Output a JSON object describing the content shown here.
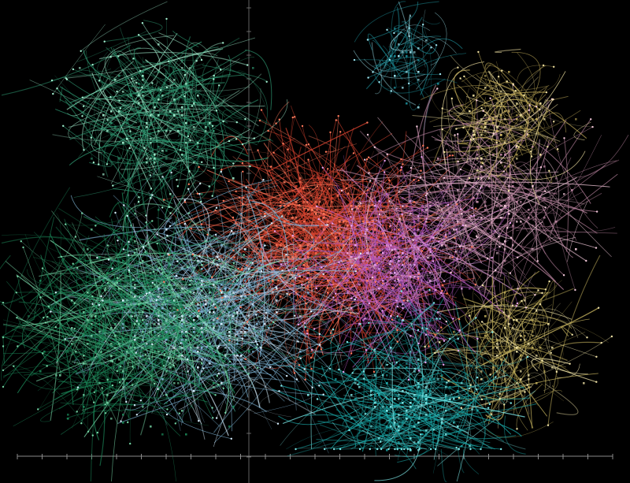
{
  "image": {
    "subject": "network-edge-bundling-visualization",
    "background_color": "#000000",
    "axis_color": "#8a8a8a",
    "tick_count": 24
  },
  "clusters": [
    {
      "id": "red-core",
      "color": "#d8432f",
      "light": "#ff7a5c",
      "density": "very-high"
    },
    {
      "id": "purple-east",
      "color": "#b65ac2",
      "light": "#e6a1ef",
      "density": "high"
    },
    {
      "id": "mauve-east",
      "color": "#c38aa7",
      "light": "#f1c7d9",
      "density": "medium"
    },
    {
      "id": "yellow-northeast",
      "color": "#c7b05b",
      "light": "#efe0a0",
      "density": "medium"
    },
    {
      "id": "yellow-southeast",
      "color": "#c6b35e",
      "light": "#f0e3a7",
      "density": "medium"
    },
    {
      "id": "teal-south",
      "color": "#1aa6a6",
      "light": "#7ee7e7",
      "density": "high"
    },
    {
      "id": "lightblue-center-west",
      "color": "#7fb6d7",
      "light": "#d6eefc",
      "density": "high"
    },
    {
      "id": "green-west",
      "color": "#1b8a5a",
      "light": "#74d2a3",
      "density": "very-high"
    },
    {
      "id": "green-northwest",
      "color": "#2f9a73",
      "light": "#a3f0d0",
      "density": "high"
    },
    {
      "id": "teal-north",
      "color": "#1c8b96",
      "light": "#9ee5f0",
      "density": "low"
    }
  ]
}
